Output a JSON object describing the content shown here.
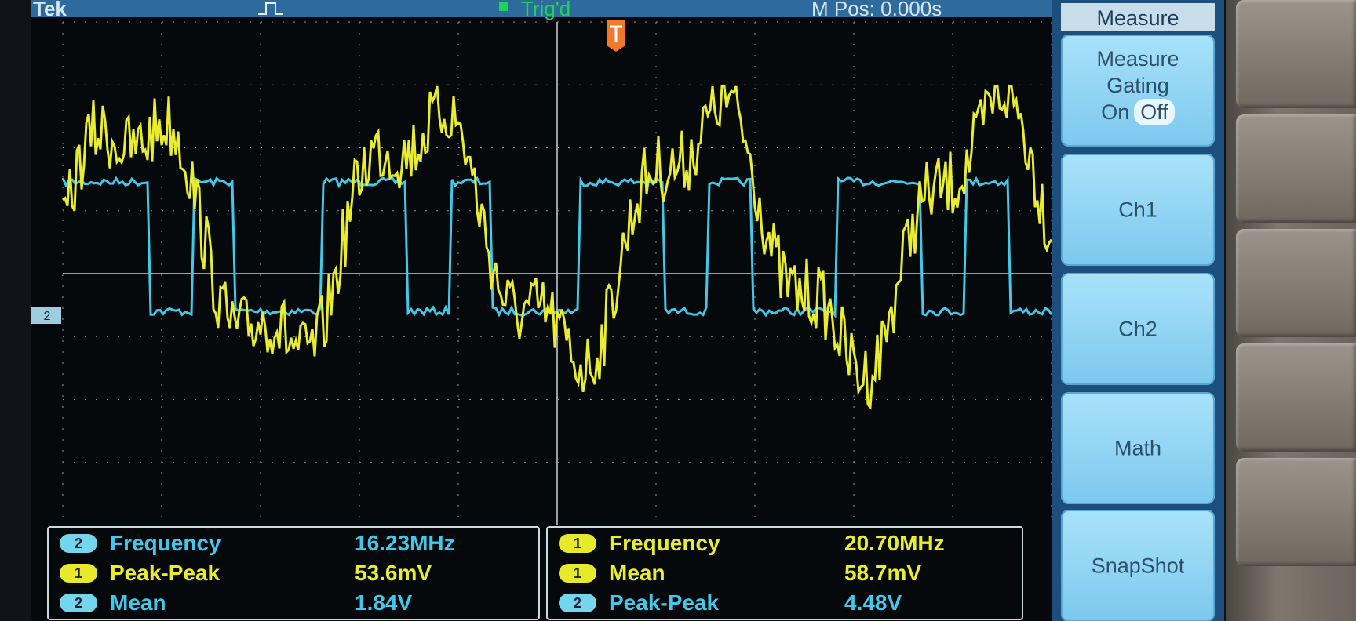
{
  "status_bar": {
    "brand": "Tek",
    "trigger_status": "Trig'd",
    "horizontal_position": "M Pos: 0.000s"
  },
  "channel_markers": {
    "ch2_ground": "2"
  },
  "side_menu": {
    "title": "Measure",
    "buttons": [
      {
        "label_lines": [
          "Measure",
          "Gating"
        ],
        "options": [
          "On",
          "Off"
        ],
        "selected": "Off"
      },
      {
        "label": "Ch1"
      },
      {
        "label": "Ch2"
      },
      {
        "label": "Math"
      },
      {
        "label": "SnapShot"
      }
    ]
  },
  "measurements": {
    "left": [
      {
        "channel": "2",
        "name": "Frequency",
        "value": "16.23MHz"
      },
      {
        "channel": "1",
        "name": "Peak-Peak",
        "value": "53.6mV"
      },
      {
        "channel": "2",
        "name": "Mean",
        "value": "1.84V"
      }
    ],
    "right": [
      {
        "channel": "1",
        "name": "Frequency",
        "value": "20.70MHz"
      },
      {
        "channel": "1",
        "name": "Mean",
        "value": "58.7mV"
      },
      {
        "channel": "2",
        "name": "Peak-Peak",
        "value": "4.48V"
      }
    ]
  },
  "colors": {
    "ch1_trace": "#e9ec30",
    "ch2_trace": "#41c8ea",
    "menu_button": "#8fd3f2",
    "status_bar": "#2e6b9c",
    "trigger_marker": "#f07a2a"
  },
  "icons": {
    "pulse": "pulse-edge-icon",
    "trigger_position": "trigger-position-marker-icon"
  }
}
